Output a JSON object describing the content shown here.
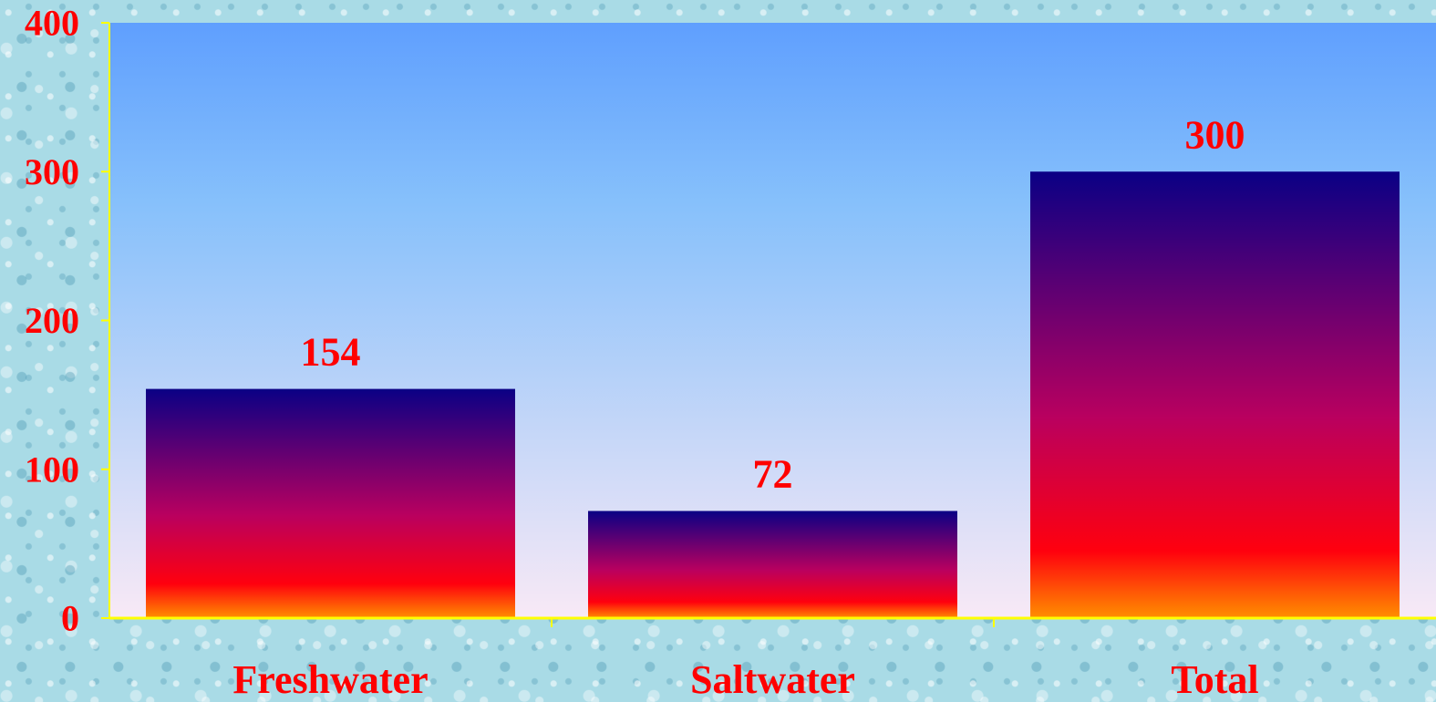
{
  "chart_data": {
    "type": "bar",
    "categories": [
      "Freshwater",
      "Saltwater",
      "Total"
    ],
    "values": [
      154,
      72,
      300
    ],
    "data_labels": [
      "154",
      "72",
      "300"
    ],
    "y_ticks": [
      "0",
      "100",
      "200",
      "300",
      "400"
    ],
    "ylim": [
      0,
      400
    ],
    "grid": false,
    "legend": "none",
    "colors": {
      "plot_top": "#5f9ffe",
      "plot_mid": "#86c0fb",
      "plot_bottom": "#f8e9f6",
      "bar_top": "#0a0085",
      "bar_mid": "#b9005f",
      "bar_low": "#ff000e",
      "bar_base": "#ff8f00",
      "axis": "#ffff00",
      "text": "#ff0000"
    }
  }
}
